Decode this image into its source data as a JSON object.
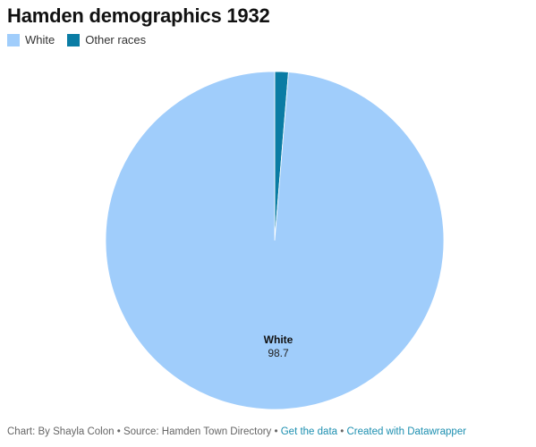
{
  "chart_data": {
    "type": "pie",
    "title": "Hamden demographics 1932",
    "categories": [
      "White",
      "Other races"
    ],
    "values": [
      98.7,
      1.3
    ],
    "colors": [
      "#a0cdfb",
      "#0a7ca4"
    ],
    "legend_position": "top-left",
    "slice_label": {
      "category": "White",
      "value": "98.7"
    }
  },
  "footer": {
    "credit": "Chart: By Shayla Colon",
    "separator": " • ",
    "source": "Source: Hamden Town Directory",
    "get_data": "Get the data",
    "created_with": "Created with Datawrapper"
  }
}
